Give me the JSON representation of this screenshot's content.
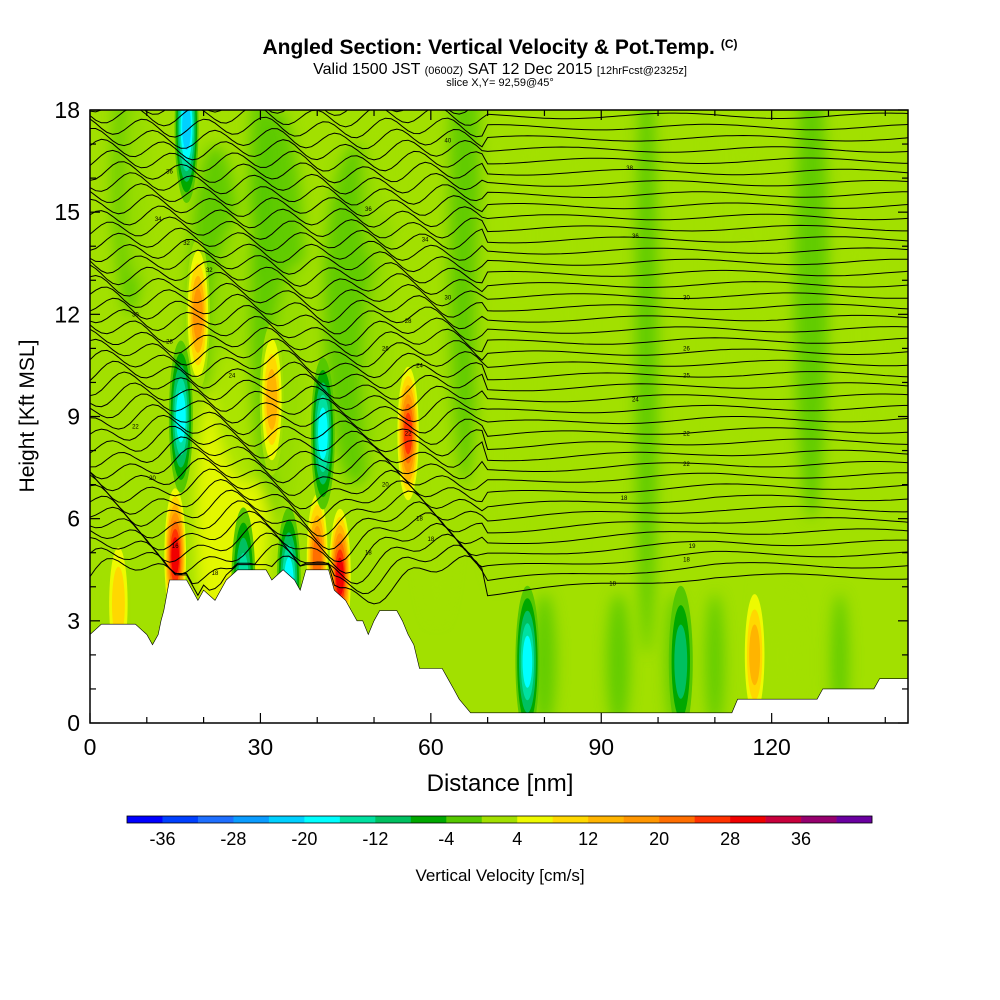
{
  "header": {
    "title": "Angled Section: Vertical Velocity & Pot.Temp.",
    "title_units": "(C)",
    "valid_prefix": "Valid 1500 JST",
    "valid_utc": "(0600Z)",
    "valid_date": "SAT 12 Dec 2015",
    "forecast": "[12hrFcst@2325z]",
    "slice": "slice X,Y= 92,59@45°"
  },
  "chart_data": {
    "type": "heatmap",
    "title": "Angled Section: Vertical Velocity & Pot.Temp. (C)",
    "xlabel": "Distance [nm]",
    "ylabel": "Height [Kft MSL]",
    "xlim": [
      0,
      144
    ],
    "ylim": [
      0,
      18
    ],
    "x_ticks": [
      0,
      30,
      60,
      90,
      120
    ],
    "y_ticks": [
      0,
      3,
      6,
      9,
      12,
      15,
      18
    ],
    "terrain_kft": [
      [
        0,
        2.6
      ],
      [
        2,
        2.9
      ],
      [
        8,
        2.9
      ],
      [
        10,
        2.6
      ],
      [
        11,
        2.3
      ],
      [
        12,
        2.6
      ],
      [
        12.5,
        3.0
      ],
      [
        13,
        3.3
      ],
      [
        14,
        4.2
      ],
      [
        17,
        4.2
      ],
      [
        18,
        3.9
      ],
      [
        19,
        3.6
      ],
      [
        20,
        3.9
      ],
      [
        22,
        3.6
      ],
      [
        24,
        4.2
      ],
      [
        26,
        4.5
      ],
      [
        31,
        4.5
      ],
      [
        32,
        4.2
      ],
      [
        34,
        4.5
      ],
      [
        36,
        4.2
      ],
      [
        37,
        3.9
      ],
      [
        38,
        4.5
      ],
      [
        42,
        4.5
      ],
      [
        43,
        3.9
      ],
      [
        45,
        3.6
      ],
      [
        46,
        3.3
      ],
      [
        47,
        3.0
      ],
      [
        48,
        3.0
      ],
      [
        49,
        2.6
      ],
      [
        50,
        3.0
      ],
      [
        51,
        3.3
      ],
      [
        54,
        3.3
      ],
      [
        55,
        3.0
      ],
      [
        56,
        2.6
      ],
      [
        57,
        2.3
      ],
      [
        58,
        1.6
      ],
      [
        62,
        1.6
      ],
      [
        63,
        1.3
      ],
      [
        64,
        1.0
      ],
      [
        65,
        0.7
      ],
      [
        67,
        0.3
      ],
      [
        113,
        0.3
      ],
      [
        114,
        0.7
      ],
      [
        128,
        0.7
      ],
      [
        129,
        1.0
      ],
      [
        138,
        1.0
      ],
      [
        139,
        1.3
      ],
      [
        144,
        1.3
      ]
    ],
    "updraft_cores_cm_s": [
      {
        "x": 15,
        "y": 4.9,
        "w": 34
      },
      {
        "x": 44,
        "y": 4.3,
        "w": 34
      },
      {
        "x": 56,
        "y": 8.5,
        "w": 28
      },
      {
        "x": 40,
        "y": 4.8,
        "w": 24
      },
      {
        "x": 19,
        "y": 12.0,
        "w": 20
      },
      {
        "x": 32,
        "y": 9.5,
        "w": 16
      },
      {
        "x": 117,
        "y": 2.0,
        "w": 16
      },
      {
        "x": 5,
        "y": 3.5,
        "w": 12
      }
    ],
    "downdraft_cores_cm_s": [
      {
        "x": 16,
        "y": 9.0,
        "w": -22
      },
      {
        "x": 41,
        "y": 8.5,
        "w": -22
      },
      {
        "x": 35,
        "y": 4.1,
        "w": -20
      },
      {
        "x": 77,
        "y": 1.8,
        "w": -20
      },
      {
        "x": 27,
        "y": 4.1,
        "w": -16
      },
      {
        "x": 104,
        "y": 1.8,
        "w": -12
      },
      {
        "x": 17,
        "y": 17.5,
        "w": -24
      }
    ],
    "theta_contour_labels_c": [
      {
        "x": 15,
        "y": 5.2,
        "t": "16"
      },
      {
        "x": 22,
        "y": 4.4,
        "t": "18"
      },
      {
        "x": 49,
        "y": 5.0,
        "t": "18"
      },
      {
        "x": 60,
        "y": 5.4,
        "t": "18"
      },
      {
        "x": 58,
        "y": 6.0,
        "t": "18"
      },
      {
        "x": 92,
        "y": 4.1,
        "t": "18"
      },
      {
        "x": 105,
        "y": 4.8,
        "t": "18"
      },
      {
        "x": 106,
        "y": 5.2,
        "t": "19"
      },
      {
        "x": 94,
        "y": 6.6,
        "t": "18"
      },
      {
        "x": 11,
        "y": 7.2,
        "t": "20"
      },
      {
        "x": 52,
        "y": 7.0,
        "t": "20"
      },
      {
        "x": 105,
        "y": 7.6,
        "t": "22"
      },
      {
        "x": 8,
        "y": 8.7,
        "t": "22"
      },
      {
        "x": 56,
        "y": 8.5,
        "t": "22"
      },
      {
        "x": 105,
        "y": 8.5,
        "t": "22"
      },
      {
        "x": 96,
        "y": 9.5,
        "t": "24"
      },
      {
        "x": 25,
        "y": 10.2,
        "t": "24"
      },
      {
        "x": 58,
        "y": 10.5,
        "t": "24"
      },
      {
        "x": 105,
        "y": 10.2,
        "t": "25"
      },
      {
        "x": 52,
        "y": 11.0,
        "t": "26"
      },
      {
        "x": 105,
        "y": 11.0,
        "t": "26"
      },
      {
        "x": 14,
        "y": 11.2,
        "t": "28"
      },
      {
        "x": 56,
        "y": 11.8,
        "t": "28"
      },
      {
        "x": 8,
        "y": 12.0,
        "t": "30"
      },
      {
        "x": 63,
        "y": 12.5,
        "t": "30"
      },
      {
        "x": 105,
        "y": 12.5,
        "t": "30"
      },
      {
        "x": 21,
        "y": 13.3,
        "t": "32"
      },
      {
        "x": 17,
        "y": 14.1,
        "t": "32"
      },
      {
        "x": 59,
        "y": 14.2,
        "t": "34"
      },
      {
        "x": 96,
        "y": 14.3,
        "t": "36"
      },
      {
        "x": 12,
        "y": 14.8,
        "t": "34"
      },
      {
        "x": 49,
        "y": 15.1,
        "t": "36"
      },
      {
        "x": 14,
        "y": 16.2,
        "t": "36"
      },
      {
        "x": 95,
        "y": 16.3,
        "t": "38"
      },
      {
        "x": 63,
        "y": 17.1,
        "t": "40"
      }
    ],
    "colorbar": {
      "label": "Vertical Velocity [cm/s]",
      "tick_labels": [
        "-36",
        "-28",
        "-20",
        "-12",
        "-4",
        "4",
        "12",
        "20",
        "28",
        "36"
      ],
      "bins": [
        {
          "lo": -40,
          "hi": -36,
          "color": "#0000ff"
        },
        {
          "lo": -36,
          "hi": -32,
          "color": "#0040ff"
        },
        {
          "lo": -32,
          "hi": -28,
          "color": "#1e6fff"
        },
        {
          "lo": -28,
          "hi": -24,
          "color": "#0a9cff"
        },
        {
          "lo": -24,
          "hi": -20,
          "color": "#00d0ff"
        },
        {
          "lo": -20,
          "hi": -16,
          "color": "#00ffff"
        },
        {
          "lo": -16,
          "hi": -12,
          "color": "#00e0a0"
        },
        {
          "lo": -12,
          "hi": -8,
          "color": "#00c060"
        },
        {
          "lo": -8,
          "hi": -4,
          "color": "#00a800"
        },
        {
          "lo": -4,
          "hi": 0,
          "color": "#55c800"
        },
        {
          "lo": 0,
          "hi": 4,
          "color": "#a2e000"
        },
        {
          "lo": 4,
          "hi": 8,
          "color": "#eefa00"
        },
        {
          "lo": 8,
          "hi": 12,
          "color": "#ffd800"
        },
        {
          "lo": 12,
          "hi": 16,
          "color": "#ffb400"
        },
        {
          "lo": 16,
          "hi": 20,
          "color": "#ff9600"
        },
        {
          "lo": 20,
          "hi": 24,
          "color": "#ff6e00"
        },
        {
          "lo": 24,
          "hi": 28,
          "color": "#ff3200"
        },
        {
          "lo": 28,
          "hi": 32,
          "color": "#f00000"
        },
        {
          "lo": 32,
          "hi": 36,
          "color": "#c8003c"
        },
        {
          "lo": 36,
          "hi": 40,
          "color": "#96006e"
        },
        {
          "lo": 40,
          "hi": 44,
          "color": "#6a00a0"
        }
      ]
    }
  }
}
